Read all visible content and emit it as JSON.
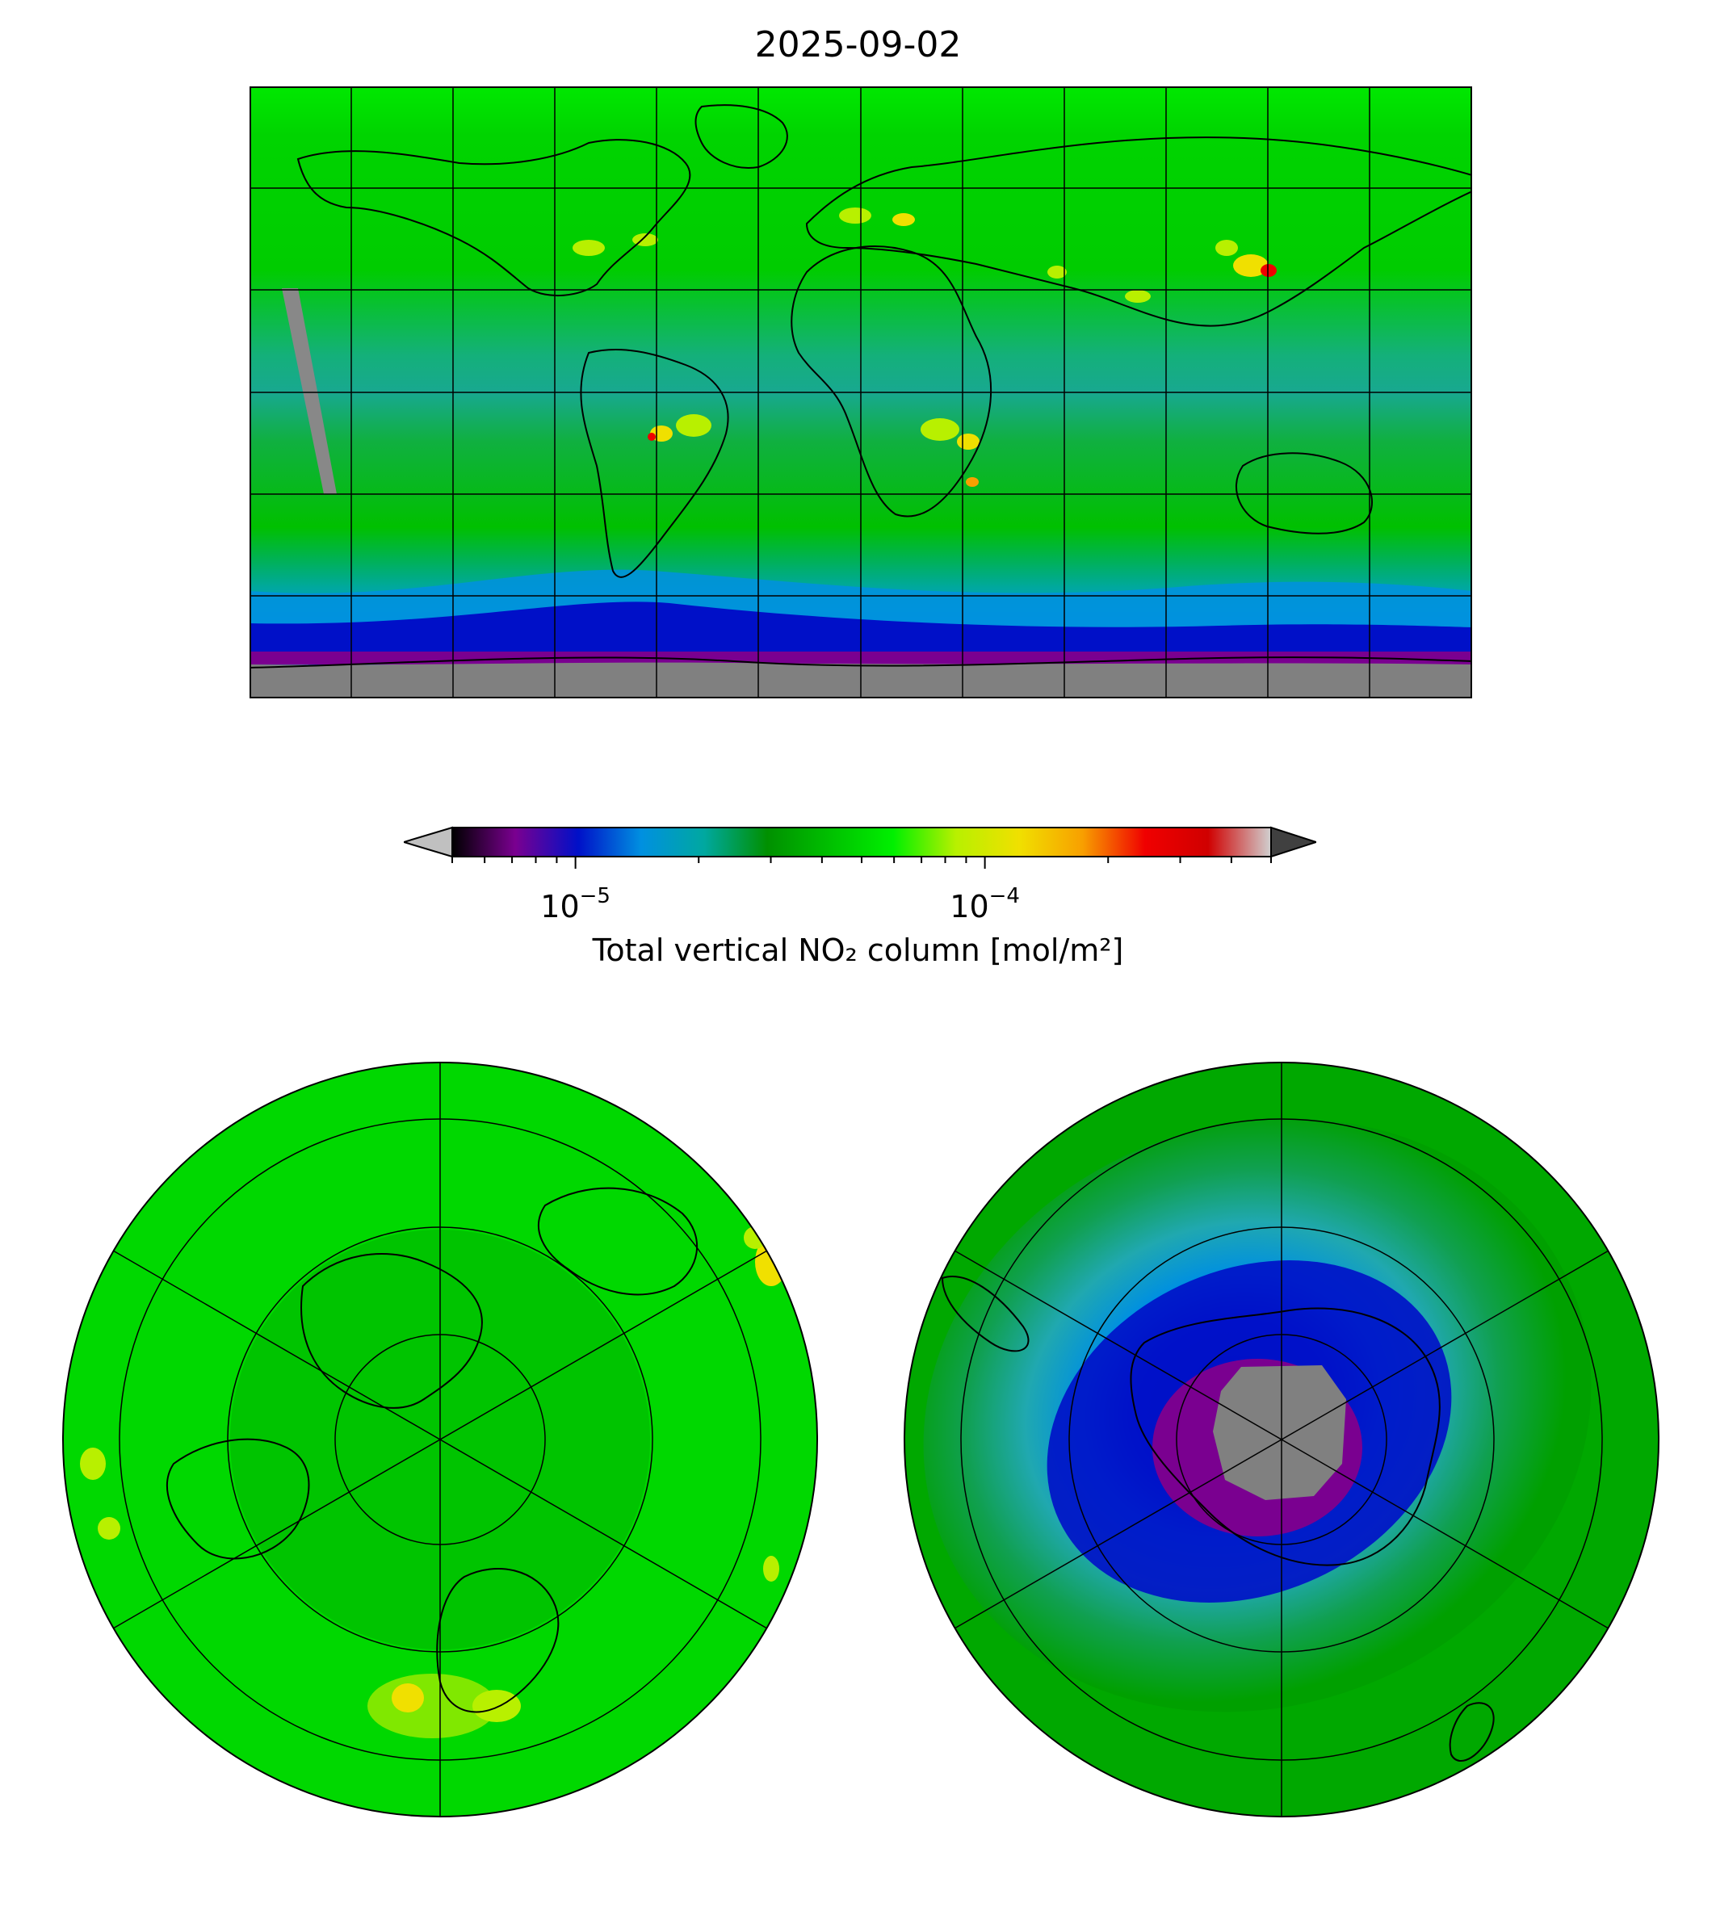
{
  "title": "2025-09-02",
  "colorbar": {
    "label": "Total vertical NO₂ column [mol/m²]",
    "scale": "log",
    "range": [
      5e-06,
      0.0005
    ],
    "ticks": [
      {
        "base": "10",
        "exp": "−5",
        "value": 1e-05
      },
      {
        "base": "10",
        "exp": "−4",
        "value": 0.0001
      }
    ],
    "colors": [
      "#000000",
      "#7a0090",
      "#0010c8",
      "#0090e0",
      "#00a8a0",
      "#009000",
      "#00c000",
      "#00f000",
      "#b8f000",
      "#f0e000",
      "#f8a000",
      "#f00000",
      "#d00000",
      "#d0d0d0"
    ],
    "extend_low_color": "#c0c0c0",
    "extend_high_color": "#404040"
  },
  "maps": {
    "global": {
      "projection": "plate-carree",
      "gridlines": true
    },
    "north": {
      "projection": "north-polar-stereographic",
      "gridlines": true
    },
    "south": {
      "projection": "south-polar-stereographic",
      "gridlines": true
    }
  },
  "colors": {
    "no_data": "#808080",
    "background_field": "#00cc00",
    "tropical_band": "#20a880",
    "antarctic_low": "#0018c8",
    "polar_vortex": "#7a0090"
  }
}
